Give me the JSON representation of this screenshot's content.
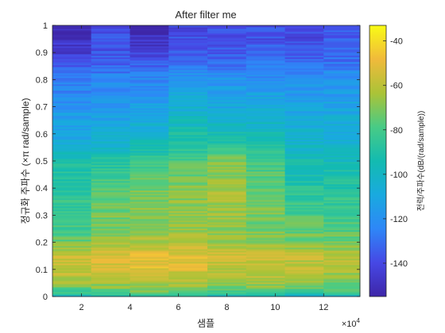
{
  "chart_data": {
    "type": "heatmap",
    "title": "After filter me",
    "xlabel": "샘플",
    "ylabel": "정규화 주파수 (×π rad/sample)",
    "x_exponent_label": "×10",
    "x_exponent_power": "4",
    "colorbar_label": "전력/주파수(dB/(rad/sample))",
    "x_range": [
      8000,
      135000
    ],
    "y_range": [
      0,
      1
    ],
    "x_ticks": [
      20000,
      40000,
      60000,
      80000,
      100000,
      120000
    ],
    "x_tick_labels": [
      "2",
      "4",
      "6",
      "8",
      "10",
      "12"
    ],
    "y_ticks": [
      0,
      0.1,
      0.2,
      0.3,
      0.4,
      0.5,
      0.6,
      0.7,
      0.8,
      0.9,
      1
    ],
    "y_tick_labels": [
      "0",
      "0.1",
      "0.2",
      "0.3",
      "0.4",
      "0.5",
      "0.6",
      "0.7",
      "0.8",
      "0.9",
      "1"
    ],
    "color_range": [
      -155,
      -33
    ],
    "colorbar_ticks": [
      -140,
      -120,
      -100,
      -80,
      -60,
      -40
    ],
    "colorbar_tick_labels": [
      "-140",
      "-120",
      "-100",
      "-80",
      "-60",
      "-40"
    ],
    "colormap": "parula",
    "time_segments": [
      {
        "x_start": 8000,
        "x_end": 24000
      },
      {
        "x_start": 24000,
        "x_end": 40000
      },
      {
        "x_start": 40000,
        "x_end": 56000
      },
      {
        "x_start": 56000,
        "x_end": 72000
      },
      {
        "x_start": 72000,
        "x_end": 88000
      },
      {
        "x_start": 88000,
        "x_end": 104000
      },
      {
        "x_start": 104000,
        "x_end": 120000
      },
      {
        "x_start": 120000,
        "x_end": 135000
      }
    ],
    "frequency_profile_db": [
      [
        0.0,
        -100
      ],
      [
        0.02,
        -78
      ],
      [
        0.05,
        -66
      ],
      [
        0.1,
        -57
      ],
      [
        0.15,
        -56
      ],
      [
        0.2,
        -68
      ],
      [
        0.25,
        -74
      ],
      [
        0.3,
        -75
      ],
      [
        0.35,
        -77
      ],
      [
        0.4,
        -80
      ],
      [
        0.45,
        -84
      ],
      [
        0.5,
        -88
      ],
      [
        0.55,
        -95
      ],
      [
        0.6,
        -100
      ],
      [
        0.65,
        -104
      ],
      [
        0.7,
        -108
      ],
      [
        0.75,
        -112
      ],
      [
        0.8,
        -116
      ],
      [
        0.85,
        -124
      ],
      [
        0.9,
        -130
      ],
      [
        1.0,
        -134
      ]
    ],
    "segment_offsets_db": [
      [
        -2,
        0,
        0,
        -8,
        -6,
        -5,
        -10,
        -10,
        -12,
        -18
      ],
      [
        4,
        0,
        3,
        2,
        4,
        -2,
        -5,
        -8,
        -8,
        -5
      ],
      [
        6,
        4,
        6,
        5,
        8,
        3,
        -2,
        -4,
        -10,
        -20
      ],
      [
        5,
        2,
        4,
        6,
        10,
        9,
        7,
        3,
        -2,
        -8
      ],
      [
        -2,
        0,
        -2,
        6,
        16,
        17,
        5,
        -2,
        -4,
        -6
      ],
      [
        0,
        2,
        -2,
        2,
        5,
        8,
        4,
        0,
        -4,
        -6
      ],
      [
        -4,
        -2,
        -4,
        -2,
        -8,
        -8,
        -4,
        -4,
        -6,
        -8
      ],
      [
        -2,
        -6,
        -6,
        -4,
        -8,
        -8,
        -6,
        -3,
        -2,
        -2
      ]
    ],
    "offset_frequencies": [
      0.0,
      0.05,
      0.1,
      0.25,
      0.4,
      0.5,
      0.6,
      0.7,
      0.85,
      1.0
    ]
  }
}
